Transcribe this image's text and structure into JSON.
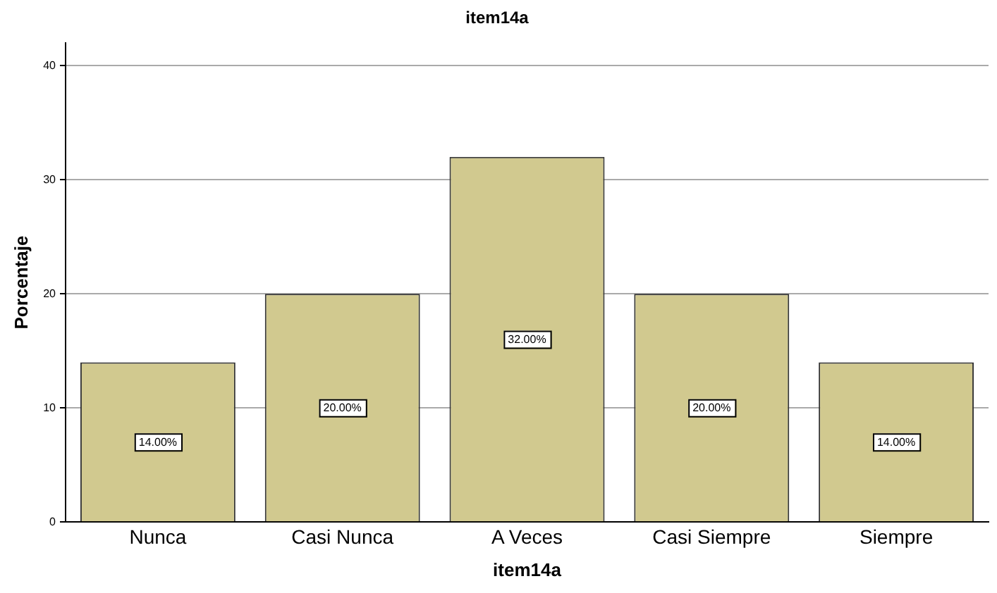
{
  "chart_data": {
    "type": "bar",
    "title": "item14a",
    "xlabel": "item14a",
    "ylabel": "Porcentaje",
    "categories": [
      "Nunca",
      "Casi Nunca",
      "A Veces",
      "Casi Siempre",
      "Siempre"
    ],
    "values": [
      14,
      20,
      32,
      20,
      14
    ],
    "color": "#d1c98f",
    "value_labels": [
      "14.00%",
      "20.00%",
      "32.00%",
      "20.00%",
      "14.00%"
    ],
    "ylim": [
      0,
      42
    ],
    "yticks": [
      0,
      10,
      20,
      30,
      40
    ],
    "grid": "y"
  }
}
